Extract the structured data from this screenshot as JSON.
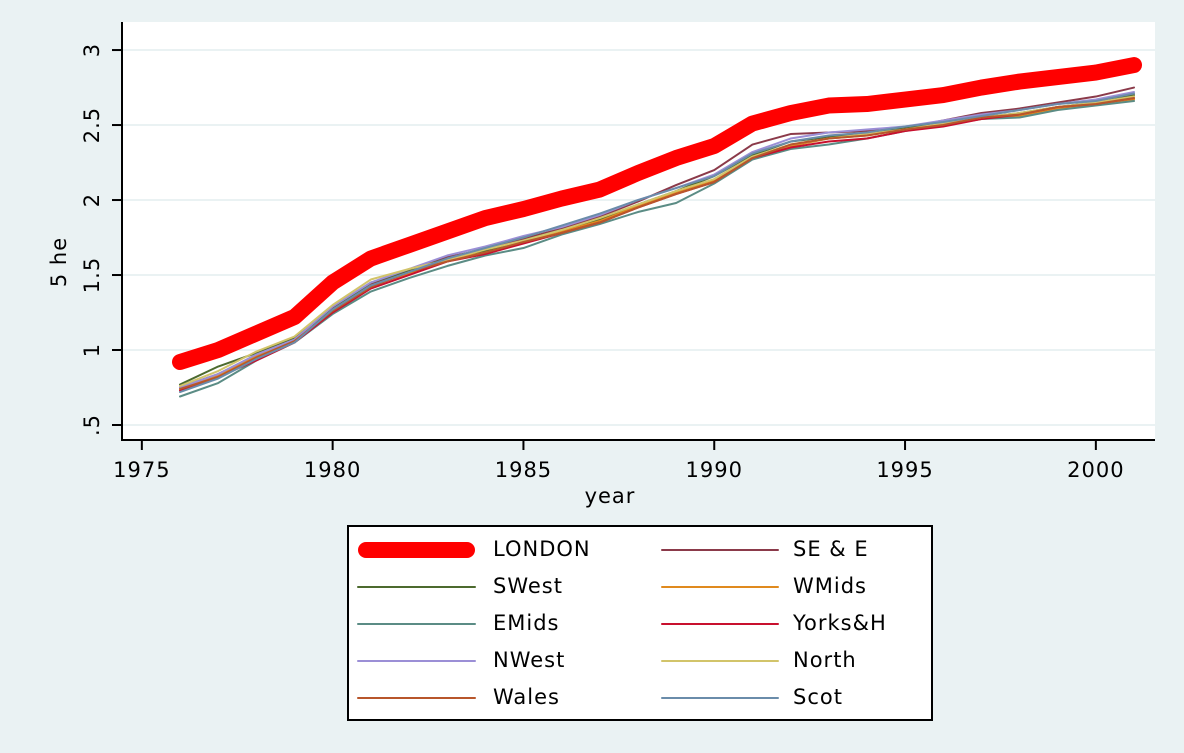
{
  "chart_data": {
    "type": "line",
    "x_label": "year",
    "y_label": "5 he",
    "x": [
      1976,
      1977,
      1978,
      1979,
      1980,
      1981,
      1982,
      1983,
      1984,
      1985,
      1986,
      1987,
      1988,
      1989,
      1990,
      1991,
      1992,
      1993,
      1994,
      1995,
      1996,
      1997,
      1998,
      1999,
      2000,
      2001
    ],
    "series": [
      {
        "name": "LONDON",
        "color": "#ff0000",
        "values": [
          0.92,
          1.0,
          1.11,
          1.22,
          1.45,
          1.61,
          1.7,
          1.79,
          1.88,
          1.94,
          2.01,
          2.07,
          2.18,
          2.28,
          2.36,
          2.51,
          2.58,
          2.63,
          2.64,
          2.67,
          2.7,
          2.75,
          2.79,
          2.82,
          2.85,
          2.9
        ]
      },
      {
        "name": "SE & E",
        "color": "#8b3a4a",
        "values": [
          0.75,
          0.84,
          0.96,
          1.07,
          1.28,
          1.44,
          1.53,
          1.62,
          1.67,
          1.74,
          1.81,
          1.89,
          1.99,
          2.1,
          2.2,
          2.37,
          2.44,
          2.45,
          2.46,
          2.48,
          2.53,
          2.58,
          2.61,
          2.65,
          2.69,
          2.75
        ]
      },
      {
        "name": "SWest",
        "color": "#4c6a2e",
        "values": [
          0.77,
          0.89,
          0.98,
          1.08,
          1.27,
          1.45,
          1.53,
          1.61,
          1.66,
          1.73,
          1.8,
          1.87,
          1.97,
          2.06,
          2.16,
          2.3,
          2.39,
          2.42,
          2.44,
          2.48,
          2.51,
          2.55,
          2.58,
          2.62,
          2.65,
          2.7
        ]
      },
      {
        "name": "WMids",
        "color": "#e08a1e",
        "values": [
          0.74,
          0.83,
          0.96,
          1.06,
          1.26,
          1.43,
          1.51,
          1.6,
          1.65,
          1.72,
          1.79,
          1.86,
          1.96,
          2.05,
          2.13,
          2.28,
          2.36,
          2.41,
          2.43,
          2.47,
          2.5,
          2.54,
          2.56,
          2.61,
          2.64,
          2.67
        ]
      },
      {
        "name": "EMids",
        "color": "#5b8c85",
        "values": [
          0.69,
          0.78,
          0.93,
          1.05,
          1.24,
          1.39,
          1.48,
          1.56,
          1.63,
          1.68,
          1.77,
          1.84,
          1.92,
          1.98,
          2.11,
          2.27,
          2.34,
          2.37,
          2.41,
          2.46,
          2.5,
          2.54,
          2.55,
          2.6,
          2.63,
          2.66
        ]
      },
      {
        "name": "Yorks&H",
        "color": "#c8102e",
        "values": [
          0.73,
          0.82,
          0.93,
          1.05,
          1.25,
          1.41,
          1.5,
          1.59,
          1.64,
          1.71,
          1.78,
          1.85,
          1.95,
          2.04,
          2.12,
          2.28,
          2.35,
          2.39,
          2.41,
          2.46,
          2.49,
          2.54,
          2.57,
          2.62,
          2.64,
          2.68
        ]
      },
      {
        "name": "NWest",
        "color": "#9b8fd6",
        "values": [
          0.75,
          0.84,
          0.97,
          1.07,
          1.29,
          1.45,
          1.54,
          1.63,
          1.69,
          1.76,
          1.82,
          1.9,
          2.0,
          2.08,
          2.17,
          2.32,
          2.41,
          2.45,
          2.47,
          2.49,
          2.53,
          2.57,
          2.6,
          2.64,
          2.67,
          2.72
        ]
      },
      {
        "name": "North",
        "color": "#d2c46a",
        "values": [
          0.76,
          0.86,
          0.99,
          1.09,
          1.3,
          1.47,
          1.54,
          1.6,
          1.67,
          1.73,
          1.8,
          1.88,
          1.97,
          2.06,
          2.14,
          2.29,
          2.37,
          2.41,
          2.44,
          2.47,
          2.51,
          2.55,
          2.58,
          2.62,
          2.65,
          2.69
        ]
      },
      {
        "name": "Wales",
        "color": "#b8562b",
        "values": [
          0.74,
          0.82,
          0.95,
          1.06,
          1.26,
          1.42,
          1.52,
          1.59,
          1.65,
          1.72,
          1.78,
          1.85,
          1.95,
          2.04,
          2.12,
          2.28,
          2.37,
          2.41,
          2.43,
          2.47,
          2.5,
          2.55,
          2.57,
          2.62,
          2.64,
          2.68
        ]
      },
      {
        "name": "Scot",
        "color": "#6a8caa",
        "values": [
          0.72,
          0.81,
          0.94,
          1.05,
          1.27,
          1.43,
          1.52,
          1.61,
          1.68,
          1.75,
          1.83,
          1.91,
          2.0,
          2.08,
          2.16,
          2.31,
          2.39,
          2.43,
          2.45,
          2.49,
          2.52,
          2.56,
          2.6,
          2.64,
          2.66,
          2.71
        ]
      }
    ],
    "xlim": [
      1974.48,
      2001.55
    ],
    "xticks": [
      1975,
      1980,
      1985,
      1990,
      1995,
      2000
    ],
    "ylim": [
      0.4,
      3.187
    ],
    "yticks": [
      {
        "value": 0.5,
        "label": ".5"
      },
      1,
      1.5,
      2,
      2.5,
      3
    ],
    "grid": true
  }
}
